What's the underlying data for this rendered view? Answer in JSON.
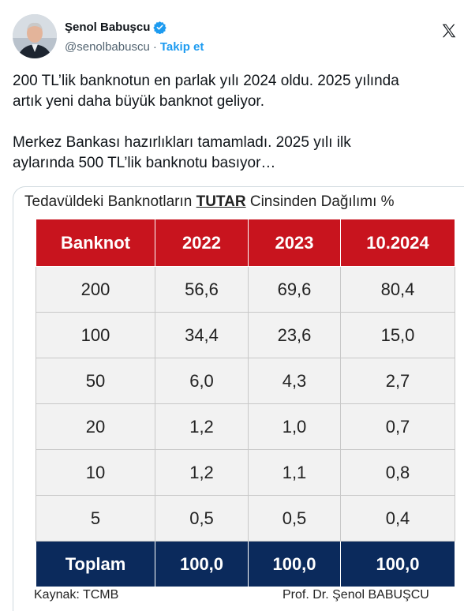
{
  "author": {
    "name": "Şenol Babuşcu",
    "handle": "@senolbabuscu",
    "separator": "·",
    "follow_label": "Takip et",
    "verified_color": "#1d9bf0"
  },
  "tweet": {
    "paragraphs": [
      "200 TL’lik banknotun en parlak yılı 2024 oldu. 2025 yılında artık yeni daha büyük banknot geliyor.",
      "Merkez Bankası hazırlıkları tamamladı. 2025 yılı ilk aylarında 500 TL’lik banknotu basıyor…"
    ],
    "line1a": "200 TL’lik banknotun en parlak yılı 2024 oldu. 2025 yılında",
    "line1b": "artık yeni daha büyük banknot geliyor.",
    "line2a": "Merkez Bankası hazırlıkları tamamladı. 2025 yılı ilk",
    "line2b": "aylarında 500 TL’lik banknotu basıyor…"
  },
  "media": {
    "title_prefix": "Tedavüldeki Banknotların ",
    "title_emphasis": "TUTAR",
    "title_suffix": " Cinsinden Dağılımı %",
    "source": "Kaynak: TCMB",
    "credit": "Prof. Dr. Şenol BABUŞCU",
    "header_color": "#c8141e",
    "total_color": "#0b2a5c"
  },
  "chart_data": {
    "type": "table",
    "title": "Tedavüldeki Banknotların TUTAR Cinsinden Dağılımı %",
    "columns": [
      "Banknot",
      "2022",
      "2023",
      "10.2024"
    ],
    "rows": [
      [
        "200",
        "56,6",
        "69,6",
        "80,4"
      ],
      [
        "100",
        "34,4",
        "23,6",
        "15,0"
      ],
      [
        "50",
        "6,0",
        "4,3",
        "2,7"
      ],
      [
        "20",
        "1,2",
        "1,0",
        "0,7"
      ],
      [
        "10",
        "1,2",
        "1,1",
        "0,8"
      ],
      [
        "5",
        "0,5",
        "0,5",
        "0,4"
      ]
    ],
    "total": [
      "Toplam",
      "100,0",
      "100,0",
      "100,0"
    ]
  }
}
